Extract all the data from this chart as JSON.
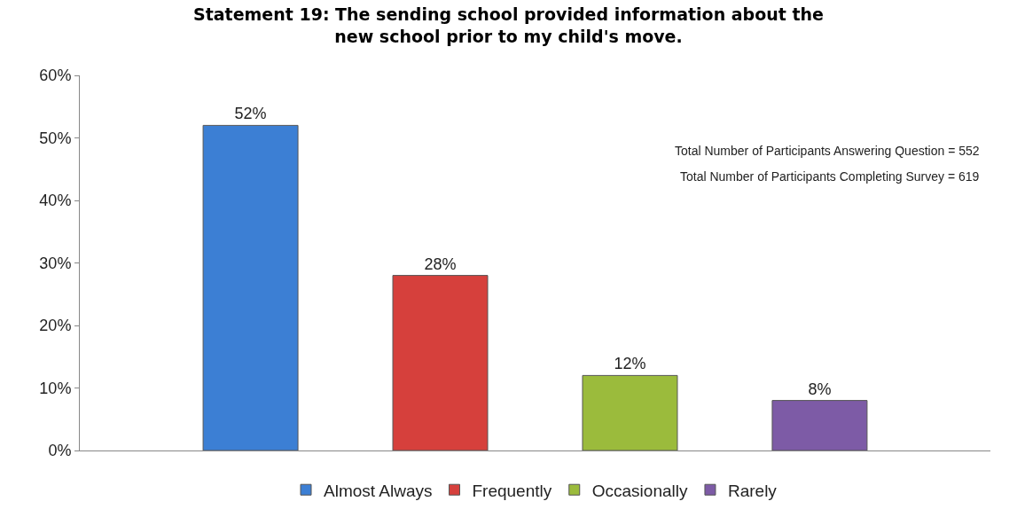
{
  "chart_data": {
    "type": "bar",
    "title": "Statement 19: The sending school provided information about the new school prior to my child's move.",
    "categories": [
      null,
      null,
      null,
      null
    ],
    "series": [
      {
        "name": "Almost Always",
        "color": "#3c7fd4",
        "values": [
          52,
          null,
          null,
          null
        ],
        "value_labels": [
          "52%",
          null,
          null,
          null
        ]
      },
      {
        "name": "Frequently",
        "color": "#d6403c",
        "values": [
          null,
          28,
          null,
          null
        ],
        "value_labels": [
          null,
          "28%",
          null,
          null
        ]
      },
      {
        "name": "Occasionally",
        "color": "#9bbb3c",
        "values": [
          null,
          null,
          12,
          null
        ],
        "value_labels": [
          null,
          null,
          "12%",
          null
        ]
      },
      {
        "name": "Rarely",
        "color": "#7d5ba6",
        "values": [
          null,
          null,
          null,
          8
        ],
        "value_labels": [
          null,
          null,
          null,
          "8%"
        ]
      }
    ],
    "ylim": [
      0,
      60
    ],
    "yticks": [
      {
        "value": 0,
        "label": "0%"
      },
      {
        "value": 10,
        "label": "10%"
      },
      {
        "value": 20,
        "label": "20%"
      },
      {
        "value": 30,
        "label": "30%"
      },
      {
        "value": 40,
        "label": "40%"
      },
      {
        "value": 50,
        "label": "50%"
      },
      {
        "value": 60,
        "label": "60%"
      }
    ],
    "annotations": [
      "Total Number of Participants Answering Question = 552",
      "Total Number of Participants Completing Survey = 619"
    ],
    "legend": "bottom"
  }
}
